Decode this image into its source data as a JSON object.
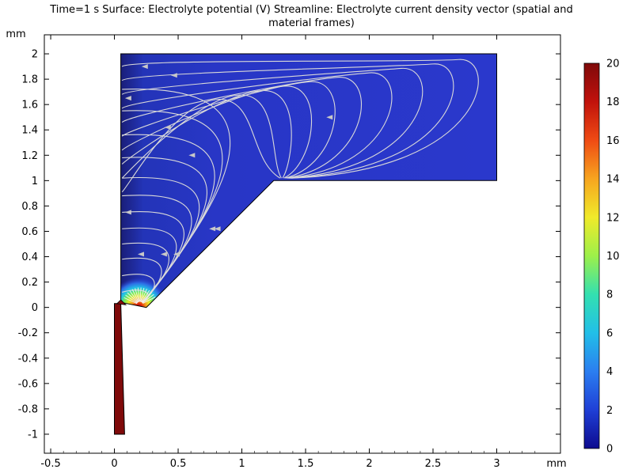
{
  "title_line1": "Time=1 s Surface: Electrolyte potential (V)  Streamline: Electrolyte current density vector (spatial and",
  "title_line2": "material frames)",
  "chart_data": {
    "type": "heatmap",
    "x_unit": "mm",
    "y_unit": "mm",
    "xlim": [
      -0.55,
      3.5
    ],
    "ylim": [
      -1.15,
      2.15
    ],
    "x_ticks": [
      -0.5,
      0,
      0.5,
      1,
      1.5,
      2,
      2.5,
      3
    ],
    "x_tick_labels": [
      "-0.5",
      "0",
      "0.5",
      "1",
      "1.5",
      "2",
      "2.5",
      "3"
    ],
    "y_ticks": [
      -1,
      -0.8,
      -0.6,
      -0.4,
      -0.2,
      0,
      0.2,
      0.4,
      0.6,
      0.8,
      1,
      1.2,
      1.4,
      1.6,
      1.8,
      2
    ],
    "y_tick_labels": [
      "-1",
      "-0.8",
      "-0.6",
      "-0.4",
      "-0.2",
      "0",
      "0.2",
      "0.4",
      "0.6",
      "0.8",
      "1",
      "1.2",
      "1.4",
      "1.6",
      "1.8",
      "2"
    ],
    "domain_outline": [
      [
        0.05,
        2.0
      ],
      [
        3.0,
        2.0
      ],
      [
        3.0,
        1.0
      ],
      [
        1.25,
        1.0
      ],
      [
        0.25,
        0.0
      ],
      [
        0.05,
        0.04
      ]
    ],
    "electrode_outline": [
      [
        0.0,
        0.03
      ],
      [
        0.05,
        0.03
      ],
      [
        0.08,
        -1.0
      ],
      [
        0.0,
        -1.0
      ]
    ],
    "colorbar": {
      "min": 0,
      "max": 20,
      "ticks": [
        0,
        2,
        4,
        6,
        8,
        10,
        12,
        14,
        16,
        18,
        20
      ],
      "tick_labels": [
        "0",
        "2",
        "4",
        "6",
        "8",
        "10",
        "12",
        "14",
        "16",
        "18",
        "20"
      ],
      "colors": [
        "#0d0b8f",
        "#1f3fd6",
        "#2b7ef0",
        "#22bfe8",
        "#33e0b0",
        "#9df04a",
        "#f0ea2a",
        "#f7a51f",
        "#ef4b14",
        "#c1120c",
        "#7f0a0a"
      ]
    },
    "streamline_color": "#d9d9d9"
  }
}
